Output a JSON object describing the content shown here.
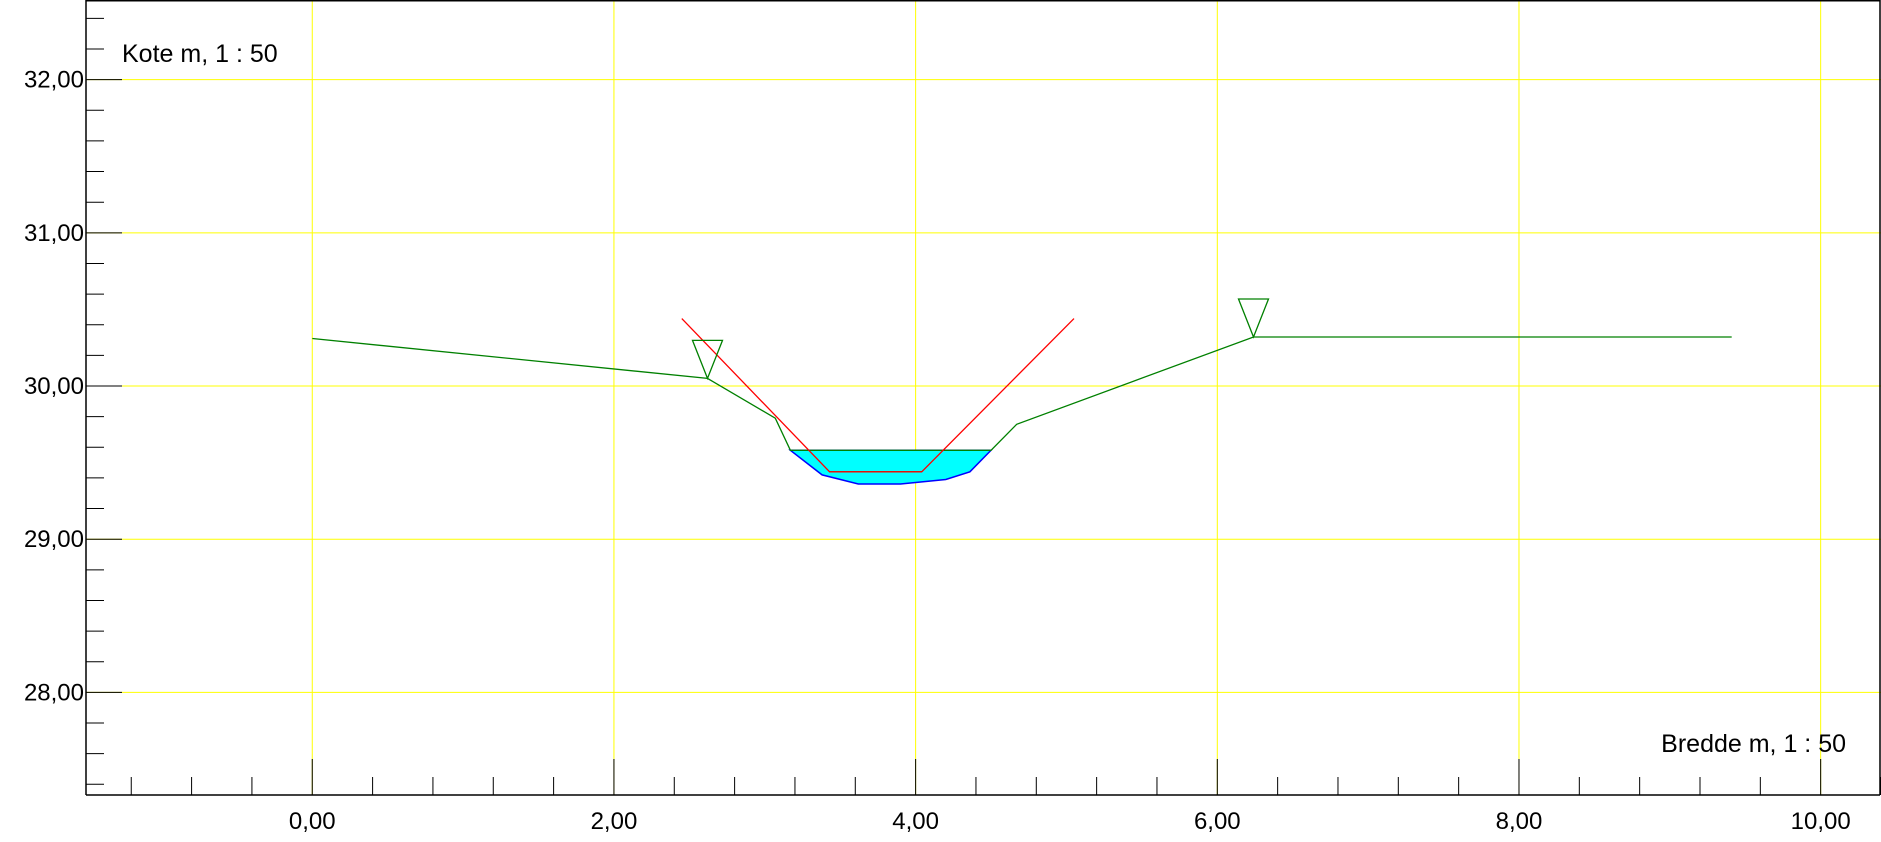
{
  "chart_data": {
    "type": "line",
    "title": "",
    "xlabel": "Bredde m, 1 : 50",
    "ylabel": "Kote m, 1 : 50",
    "xlim": [
      -1.5,
      10.4
    ],
    "ylim": [
      27.33,
      32.52
    ],
    "x_ticks": [
      {
        "value": 0,
        "label": "0,00"
      },
      {
        "value": 2,
        "label": "2,00"
      },
      {
        "value": 4,
        "label": "4,00"
      },
      {
        "value": 6,
        "label": "6,00"
      },
      {
        "value": 8,
        "label": "8,00"
      },
      {
        "value": 10,
        "label": "10,00"
      }
    ],
    "y_ticks": [
      {
        "value": 28,
        "label": "28,00"
      },
      {
        "value": 29,
        "label": "29,00"
      },
      {
        "value": 30,
        "label": "30,00"
      },
      {
        "value": 31,
        "label": "31,00"
      },
      {
        "value": 32,
        "label": "32,00"
      }
    ],
    "grid": true,
    "grid_color": "#ffff00",
    "series": [
      {
        "kind": "terrain",
        "color": "#008000",
        "x": [
          0.0,
          2.62,
          3.07,
          3.17,
          4.5,
          4.67,
          6.24,
          9.41
        ],
        "y": [
          30.31,
          30.05,
          29.79,
          29.58,
          29.58,
          29.75,
          30.32,
          30.32
        ]
      },
      {
        "kind": "channel-bottom",
        "color": "#008000",
        "x": [
          3.43,
          4.04
        ],
        "y": [
          29.44,
          29.44
        ]
      },
      {
        "kind": "slope",
        "color": "#ff0000",
        "x": [
          2.45,
          3.43,
          4.04,
          5.05
        ],
        "y": [
          30.44,
          29.44,
          29.44,
          30.44
        ]
      }
    ],
    "water": {
      "fill": "#00ffff",
      "stroke": "#0000ff",
      "x": [
        3.17,
        3.38,
        3.62,
        3.9,
        4.2,
        4.36,
        4.5
      ],
      "y": [
        29.58,
        29.42,
        29.36,
        29.36,
        29.39,
        29.44,
        29.58
      ]
    },
    "markers": [
      {
        "kind": "triangle-down",
        "color": "#008000",
        "x": 2.62,
        "y": 30.05
      },
      {
        "kind": "triangle-down",
        "color": "#008000",
        "x": 6.24,
        "y": 30.32
      }
    ]
  }
}
